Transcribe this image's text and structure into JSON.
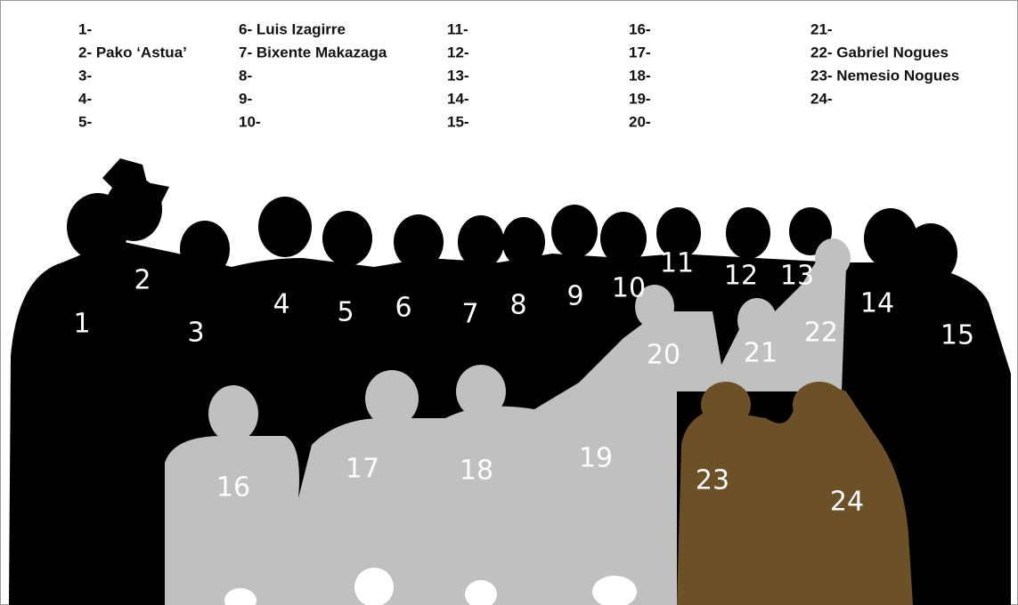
{
  "legend": {
    "entries": [
      "1-",
      "2- Pako ‘Astua’",
      "3-",
      "4-",
      "5-",
      "6- Luis Izagirre",
      "7- Bixente Makazaga",
      "8-",
      "9-",
      "10-",
      "11-",
      "12-",
      "13-",
      "14-",
      "15-",
      "16-",
      "17-",
      "18-",
      "19-",
      "20-",
      "21-",
      "22- Gabriel Nogues",
      "23- Nemesio Nogues",
      "24-"
    ]
  },
  "figures": {
    "labels": [
      "1",
      "2",
      "3",
      "4",
      "5",
      "6",
      "7",
      "8",
      "9",
      "10",
      "11",
      "12",
      "13",
      "14",
      "15",
      "16",
      "17",
      "18",
      "19",
      "20",
      "21",
      "22",
      "23",
      "24"
    ]
  }
}
